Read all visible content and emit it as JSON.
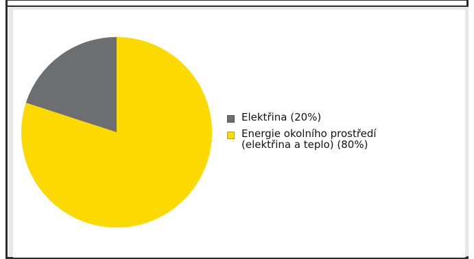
{
  "chart_data": {
    "type": "pie",
    "title": "",
    "categories": [
      "Elektřina (20%)",
      "Energie okolního prostředí (elektřina a teplo) (80%)"
    ],
    "values": [
      20,
      80
    ],
    "colors": [
      "#6d6e71",
      "#fcda00"
    ],
    "start_angle_deg": 0,
    "direction": "counterclockwise",
    "legend_placement": "right"
  },
  "legend": {
    "items": [
      {
        "label": "Elektřina (20%)",
        "color": "#6d6e71"
      },
      {
        "label_line1": "Energie okolního prostředí",
        "label_line2": "(elektřina a teplo) (80%)",
        "color": "#fcda00"
      }
    ]
  }
}
